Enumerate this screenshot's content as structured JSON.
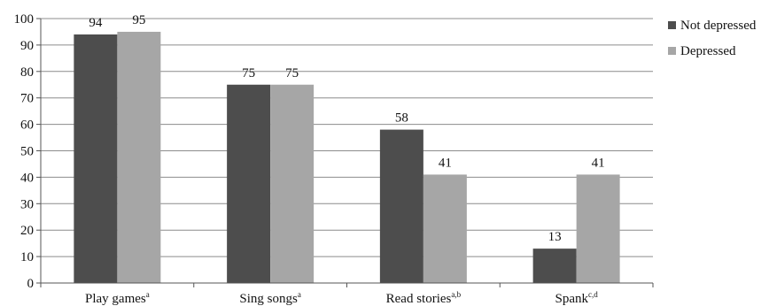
{
  "chart_data": {
    "type": "bar",
    "categories": [
      {
        "label": "Play games",
        "sup": "a"
      },
      {
        "label": "Sing songs",
        "sup": "a"
      },
      {
        "label": "Read stories",
        "sup": "a,b"
      },
      {
        "label": "Spank",
        "sup": "c,d"
      }
    ],
    "series": [
      {
        "name": "Not depressed",
        "color": "#4d4d4d",
        "values": [
          94,
          75,
          58,
          13
        ]
      },
      {
        "name": "Depressed",
        "color": "#a6a6a6",
        "values": [
          95,
          75,
          41,
          41
        ]
      }
    ],
    "yticks": [
      "0",
      "10",
      "20",
      "30",
      "40",
      "50",
      "60",
      "70",
      "80",
      "90",
      "100"
    ],
    "ylim": [
      0,
      100
    ],
    "grid": true,
    "legend_position": "right",
    "title": "",
    "xlabel": "",
    "ylabel": ""
  }
}
